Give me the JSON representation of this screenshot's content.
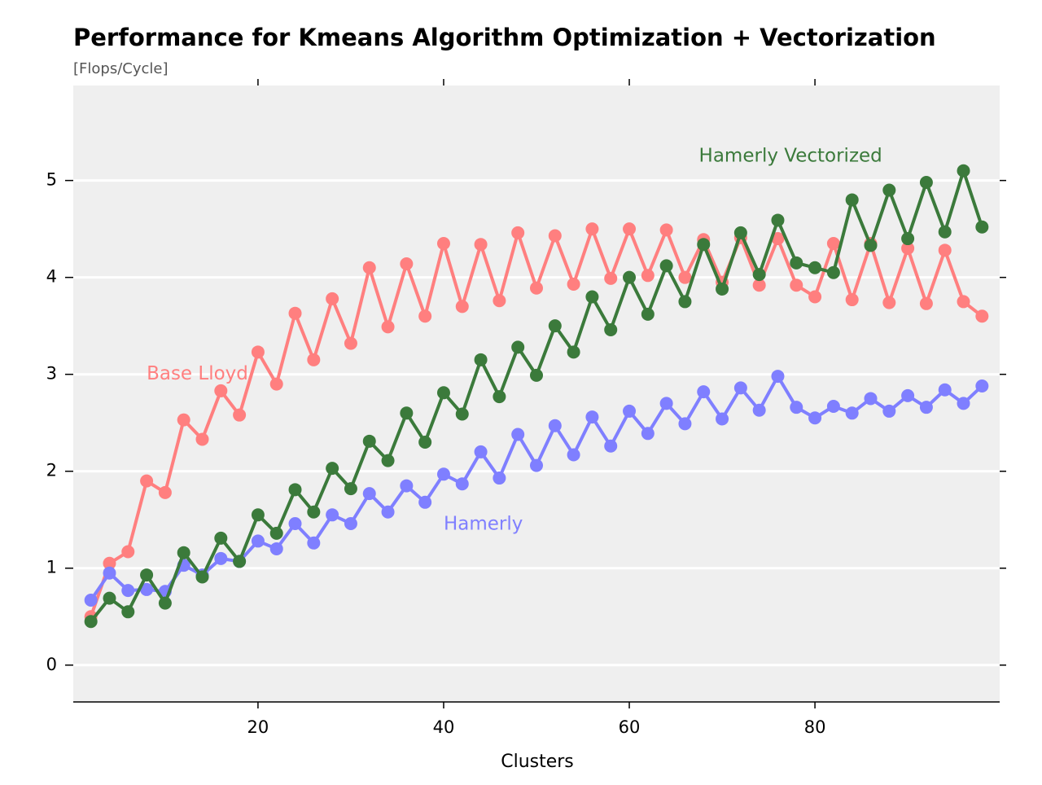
{
  "chart_data": {
    "type": "line",
    "title": "Performance for Kmeans Algorithm Optimization + Vectorization",
    "subtitle": "[Flops/Cycle]",
    "x_label": "Clusters",
    "x": [
      2,
      4,
      6,
      8,
      10,
      12,
      14,
      16,
      18,
      20,
      22,
      24,
      26,
      28,
      30,
      32,
      34,
      36,
      38,
      40,
      42,
      44,
      46,
      48,
      50,
      52,
      54,
      56,
      58,
      60,
      62,
      64,
      66,
      68,
      70,
      72,
      74,
      76,
      78,
      80,
      82,
      84,
      86,
      88,
      90,
      92,
      94,
      96,
      98
    ],
    "series": [
      {
        "name": "Base Lloyd",
        "color": "#ff7f7f",
        "values": [
          0.5,
          1.05,
          1.17,
          1.9,
          1.78,
          2.53,
          2.33,
          2.83,
          2.58,
          3.23,
          2.9,
          3.63,
          3.15,
          3.78,
          3.32,
          4.1,
          3.49,
          4.14,
          3.6,
          4.35,
          3.7,
          4.34,
          3.76,
          4.46,
          3.89,
          4.43,
          3.93,
          4.5,
          3.99,
          4.5,
          4.02,
          4.49,
          4.0,
          4.39,
          3.95,
          4.41,
          3.92,
          4.4,
          3.92,
          3.8,
          4.35,
          3.77,
          4.35,
          3.74,
          4.3,
          3.73,
          4.28,
          3.75,
          3.6
        ]
      },
      {
        "name": "Hamerly",
        "color": "#7f7fff",
        "values": [
          0.67,
          0.95,
          0.77,
          0.78,
          0.76,
          1.03,
          0.93,
          1.1,
          1.07,
          1.28,
          1.2,
          1.46,
          1.26,
          1.55,
          1.46,
          1.77,
          1.58,
          1.85,
          1.68,
          1.97,
          1.87,
          2.2,
          1.93,
          2.38,
          2.06,
          2.47,
          2.17,
          2.56,
          2.26,
          2.62,
          2.39,
          2.7,
          2.49,
          2.82,
          2.54,
          2.86,
          2.63,
          2.98,
          2.66,
          2.55,
          2.67,
          2.6,
          2.75,
          2.62,
          2.78,
          2.66,
          2.84,
          2.7,
          2.88
        ]
      },
      {
        "name": "Hamerly Vectorized",
        "color": "#3b7a3b",
        "values": [
          0.45,
          0.69,
          0.55,
          0.93,
          0.64,
          1.16,
          0.91,
          1.31,
          1.07,
          1.55,
          1.36,
          1.81,
          1.58,
          2.03,
          1.82,
          2.31,
          2.11,
          2.6,
          2.3,
          2.81,
          2.59,
          3.15,
          2.77,
          3.28,
          2.99,
          3.5,
          3.23,
          3.8,
          3.46,
          4.0,
          3.62,
          4.12,
          3.75,
          4.34,
          3.88,
          4.46,
          4.03,
          4.59,
          4.15,
          4.1,
          4.05,
          4.8,
          4.33,
          4.9,
          4.4,
          4.98,
          4.47,
          5.1,
          4.52
        ]
      }
    ],
    "xlim": [
      0.1,
      99.9
    ],
    "ylim": [
      -0.38,
      5.98
    ],
    "xticks": [
      20,
      40,
      60,
      80
    ],
    "yticks": [
      0,
      1,
      2,
      3,
      4,
      5
    ],
    "grid": true,
    "background": "#efefef"
  }
}
